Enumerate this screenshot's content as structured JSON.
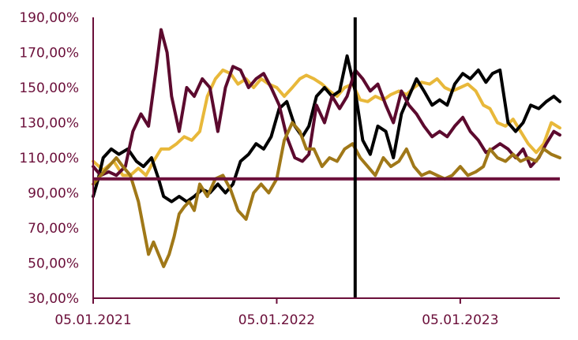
{
  "chart_data": {
    "type": "line",
    "title": "",
    "xlabel": "",
    "ylabel": "",
    "x_range": [
      "2021-01-05",
      "2023-07-22"
    ],
    "x_ticks": [
      {
        "label": "05.01.2021",
        "date": "2021-01-05"
      },
      {
        "label": "05.01.2022",
        "date": "2022-01-05"
      },
      {
        "label": "05.01.2023",
        "date": "2023-01-05"
      }
    ],
    "y_ticks": [
      30,
      50,
      70,
      90,
      110,
      130,
      150,
      170,
      190
    ],
    "y_tick_labels": [
      "30,00%",
      "50,00%",
      "70,00%",
      "90,00%",
      "110,00%",
      "130,00%",
      "150,00%",
      "170,00%",
      "190,00%"
    ],
    "ylim": [
      30,
      190
    ],
    "grid": false,
    "legend": "none",
    "reference_line": {
      "value": 98,
      "color": "#6b0f3a"
    },
    "event_line": {
      "date": "2022-06-10",
      "color": "#000000"
    },
    "colors": {
      "axis": "#6b0f3a",
      "tick_label": "#6b0f3a"
    },
    "series": [
      {
        "color": "#e8b83a",
        "points": [
          [
            "2021-01-05",
            108
          ],
          [
            "2021-01-25",
            103
          ],
          [
            "2021-02-15",
            108
          ],
          [
            "2021-03-05",
            100
          ],
          [
            "2021-03-20",
            100
          ],
          [
            "2021-04-05",
            104
          ],
          [
            "2021-04-20",
            100
          ],
          [
            "2021-05-05",
            108
          ],
          [
            "2021-05-20",
            115
          ],
          [
            "2021-06-05",
            115
          ],
          [
            "2021-06-20",
            118
          ],
          [
            "2021-07-05",
            122
          ],
          [
            "2021-07-20",
            120
          ],
          [
            "2021-08-05",
            125
          ],
          [
            "2021-08-20",
            145
          ],
          [
            "2021-09-05",
            155
          ],
          [
            "2021-09-20",
            160
          ],
          [
            "2021-10-05",
            158
          ],
          [
            "2021-10-20",
            152
          ],
          [
            "2021-11-05",
            155
          ],
          [
            "2021-11-20",
            150
          ],
          [
            "2021-12-05",
            155
          ],
          [
            "2021-12-20",
            152
          ],
          [
            "2022-01-05",
            150
          ],
          [
            "2022-01-20",
            145
          ],
          [
            "2022-02-05",
            150
          ],
          [
            "2022-02-20",
            155
          ],
          [
            "2022-03-05",
            157
          ],
          [
            "2022-03-20",
            155
          ],
          [
            "2022-04-05",
            152
          ],
          [
            "2022-04-20",
            148
          ],
          [
            "2022-05-05",
            145
          ],
          [
            "2022-05-20",
            150
          ],
          [
            "2022-06-05",
            152
          ],
          [
            "2022-06-20",
            143
          ],
          [
            "2022-07-05",
            142
          ],
          [
            "2022-07-20",
            145
          ],
          [
            "2022-08-05",
            143
          ],
          [
            "2022-08-20",
            146
          ],
          [
            "2022-09-05",
            148
          ],
          [
            "2022-09-20",
            146
          ],
          [
            "2022-10-05",
            150
          ],
          [
            "2022-10-20",
            153
          ],
          [
            "2022-11-05",
            152
          ],
          [
            "2022-11-20",
            155
          ],
          [
            "2022-12-05",
            150
          ],
          [
            "2022-12-20",
            148
          ],
          [
            "2023-01-05",
            150
          ],
          [
            "2023-01-20",
            152
          ],
          [
            "2023-02-05",
            148
          ],
          [
            "2023-02-20",
            140
          ],
          [
            "2023-03-05",
            138
          ],
          [
            "2023-03-20",
            130
          ],
          [
            "2023-04-05",
            128
          ],
          [
            "2023-04-20",
            132
          ],
          [
            "2023-05-05",
            125
          ],
          [
            "2023-05-20",
            118
          ],
          [
            "2023-06-05",
            113
          ],
          [
            "2023-06-20",
            118
          ],
          [
            "2023-07-05",
            130
          ],
          [
            "2023-07-22",
            127
          ]
        ]
      },
      {
        "color": "#000000",
        "points": [
          [
            "2021-01-05",
            88
          ],
          [
            "2021-01-15",
            98
          ],
          [
            "2021-01-25",
            110
          ],
          [
            "2021-02-10",
            115
          ],
          [
            "2021-02-25",
            112
          ],
          [
            "2021-03-15",
            115
          ],
          [
            "2021-04-01",
            108
          ],
          [
            "2021-04-15",
            105
          ],
          [
            "2021-05-01",
            110
          ],
          [
            "2021-05-15",
            98
          ],
          [
            "2021-05-25",
            88
          ],
          [
            "2021-06-10",
            85
          ],
          [
            "2021-06-25",
            88
          ],
          [
            "2021-07-10",
            85
          ],
          [
            "2021-07-25",
            88
          ],
          [
            "2021-08-10",
            92
          ],
          [
            "2021-08-25",
            90
          ],
          [
            "2021-09-10",
            95
          ],
          [
            "2021-09-25",
            90
          ],
          [
            "2021-10-10",
            95
          ],
          [
            "2021-10-25",
            108
          ],
          [
            "2021-11-10",
            112
          ],
          [
            "2021-11-25",
            118
          ],
          [
            "2021-12-10",
            115
          ],
          [
            "2021-12-25",
            122
          ],
          [
            "2022-01-10",
            138
          ],
          [
            "2022-01-25",
            142
          ],
          [
            "2022-02-10",
            128
          ],
          [
            "2022-02-25",
            122
          ],
          [
            "2022-03-10",
            128
          ],
          [
            "2022-03-25",
            145
          ],
          [
            "2022-04-10",
            150
          ],
          [
            "2022-04-25",
            145
          ],
          [
            "2022-05-10",
            148
          ],
          [
            "2022-05-25",
            168
          ],
          [
            "2022-06-10",
            148
          ],
          [
            "2022-06-25",
            120
          ],
          [
            "2022-07-10",
            112
          ],
          [
            "2022-07-25",
            128
          ],
          [
            "2022-08-10",
            125
          ],
          [
            "2022-08-25",
            110
          ],
          [
            "2022-09-10",
            135
          ],
          [
            "2022-09-25",
            145
          ],
          [
            "2022-10-10",
            155
          ],
          [
            "2022-10-25",
            148
          ],
          [
            "2022-11-10",
            140
          ],
          [
            "2022-11-25",
            143
          ],
          [
            "2022-12-10",
            140
          ],
          [
            "2022-12-25",
            152
          ],
          [
            "2023-01-10",
            158
          ],
          [
            "2023-01-25",
            155
          ],
          [
            "2023-02-10",
            160
          ],
          [
            "2023-02-25",
            153
          ],
          [
            "2023-03-10",
            158
          ],
          [
            "2023-03-25",
            160
          ],
          [
            "2023-04-10",
            130
          ],
          [
            "2023-04-25",
            125
          ],
          [
            "2023-05-10",
            130
          ],
          [
            "2023-05-25",
            140
          ],
          [
            "2023-06-10",
            138
          ],
          [
            "2023-06-25",
            142
          ],
          [
            "2023-07-10",
            145
          ],
          [
            "2023-07-22",
            142
          ]
        ]
      },
      {
        "color": "#5c0a2e",
        "points": [
          [
            "2021-01-05",
            105
          ],
          [
            "2021-01-20",
            100
          ],
          [
            "2021-02-05",
            102
          ],
          [
            "2021-02-20",
            100
          ],
          [
            "2021-03-10",
            105
          ],
          [
            "2021-03-25",
            125
          ],
          [
            "2021-04-10",
            135
          ],
          [
            "2021-04-25",
            128
          ],
          [
            "2021-05-10",
            160
          ],
          [
            "2021-05-20",
            183
          ],
          [
            "2021-06-01",
            170
          ],
          [
            "2021-06-10",
            145
          ],
          [
            "2021-06-25",
            125
          ],
          [
            "2021-07-10",
            150
          ],
          [
            "2021-07-25",
            145
          ],
          [
            "2021-08-10",
            155
          ],
          [
            "2021-08-25",
            150
          ],
          [
            "2021-09-10",
            125
          ],
          [
            "2021-09-25",
            150
          ],
          [
            "2021-10-10",
            162
          ],
          [
            "2021-10-25",
            160
          ],
          [
            "2021-11-10",
            150
          ],
          [
            "2021-11-25",
            155
          ],
          [
            "2021-12-10",
            158
          ],
          [
            "2021-12-25",
            150
          ],
          [
            "2022-01-10",
            140
          ],
          [
            "2022-01-25",
            122
          ],
          [
            "2022-02-10",
            110
          ],
          [
            "2022-02-25",
            108
          ],
          [
            "2022-03-10",
            112
          ],
          [
            "2022-03-25",
            140
          ],
          [
            "2022-04-10",
            130
          ],
          [
            "2022-04-25",
            145
          ],
          [
            "2022-05-10",
            138
          ],
          [
            "2022-05-25",
            145
          ],
          [
            "2022-06-10",
            160
          ],
          [
            "2022-06-25",
            155
          ],
          [
            "2022-07-10",
            148
          ],
          [
            "2022-07-25",
            152
          ],
          [
            "2022-08-10",
            140
          ],
          [
            "2022-08-25",
            130
          ],
          [
            "2022-09-10",
            148
          ],
          [
            "2022-09-25",
            140
          ],
          [
            "2022-10-10",
            135
          ],
          [
            "2022-10-25",
            128
          ],
          [
            "2022-11-10",
            122
          ],
          [
            "2022-11-25",
            125
          ],
          [
            "2022-12-10",
            122
          ],
          [
            "2022-12-25",
            128
          ],
          [
            "2023-01-10",
            133
          ],
          [
            "2023-01-25",
            125
          ],
          [
            "2023-02-10",
            120
          ],
          [
            "2023-02-25",
            113
          ],
          [
            "2023-03-10",
            115
          ],
          [
            "2023-03-25",
            118
          ],
          [
            "2023-04-10",
            115
          ],
          [
            "2023-04-25",
            110
          ],
          [
            "2023-05-10",
            115
          ],
          [
            "2023-05-25",
            105
          ],
          [
            "2023-06-10",
            110
          ],
          [
            "2023-06-25",
            118
          ],
          [
            "2023-07-10",
            125
          ],
          [
            "2023-07-22",
            123
          ]
        ]
      },
      {
        "color": "#a07818",
        "points": [
          [
            "2021-01-05",
            95
          ],
          [
            "2021-01-20",
            100
          ],
          [
            "2021-02-05",
            105
          ],
          [
            "2021-02-20",
            110
          ],
          [
            "2021-03-05",
            105
          ],
          [
            "2021-03-20",
            100
          ],
          [
            "2021-04-05",
            85
          ],
          [
            "2021-04-15",
            70
          ],
          [
            "2021-04-25",
            55
          ],
          [
            "2021-05-05",
            62
          ],
          [
            "2021-05-15",
            55
          ],
          [
            "2021-05-25",
            48
          ],
          [
            "2021-06-05",
            55
          ],
          [
            "2021-06-15",
            65
          ],
          [
            "2021-06-25",
            78
          ],
          [
            "2021-07-05",
            82
          ],
          [
            "2021-07-15",
            85
          ],
          [
            "2021-07-25",
            80
          ],
          [
            "2021-08-05",
            95
          ],
          [
            "2021-08-20",
            88
          ],
          [
            "2021-09-05",
            98
          ],
          [
            "2021-09-20",
            100
          ],
          [
            "2021-10-05",
            92
          ],
          [
            "2021-10-20",
            80
          ],
          [
            "2021-11-05",
            75
          ],
          [
            "2021-11-20",
            90
          ],
          [
            "2021-12-05",
            95
          ],
          [
            "2021-12-20",
            90
          ],
          [
            "2022-01-05",
            98
          ],
          [
            "2022-01-20",
            120
          ],
          [
            "2022-02-05",
            130
          ],
          [
            "2022-02-20",
            125
          ],
          [
            "2022-03-05",
            115
          ],
          [
            "2022-03-20",
            115
          ],
          [
            "2022-04-05",
            105
          ],
          [
            "2022-04-20",
            110
          ],
          [
            "2022-05-05",
            108
          ],
          [
            "2022-05-20",
            115
          ],
          [
            "2022-06-05",
            118
          ],
          [
            "2022-06-20",
            110
          ],
          [
            "2022-07-05",
            105
          ],
          [
            "2022-07-20",
            100
          ],
          [
            "2022-08-05",
            110
          ],
          [
            "2022-08-20",
            105
          ],
          [
            "2022-09-05",
            108
          ],
          [
            "2022-09-20",
            115
          ],
          [
            "2022-10-05",
            105
          ],
          [
            "2022-10-20",
            100
          ],
          [
            "2022-11-05",
            102
          ],
          [
            "2022-11-20",
            100
          ],
          [
            "2022-12-05",
            98
          ],
          [
            "2022-12-20",
            100
          ],
          [
            "2023-01-05",
            105
          ],
          [
            "2023-01-20",
            100
          ],
          [
            "2023-02-05",
            102
          ],
          [
            "2023-02-20",
            105
          ],
          [
            "2023-03-05",
            115
          ],
          [
            "2023-03-20",
            110
          ],
          [
            "2023-04-05",
            108
          ],
          [
            "2023-04-20",
            112
          ],
          [
            "2023-05-05",
            108
          ],
          [
            "2023-05-20",
            110
          ],
          [
            "2023-06-05",
            108
          ],
          [
            "2023-06-20",
            115
          ],
          [
            "2023-07-05",
            112
          ],
          [
            "2023-07-22",
            110
          ]
        ]
      }
    ]
  }
}
